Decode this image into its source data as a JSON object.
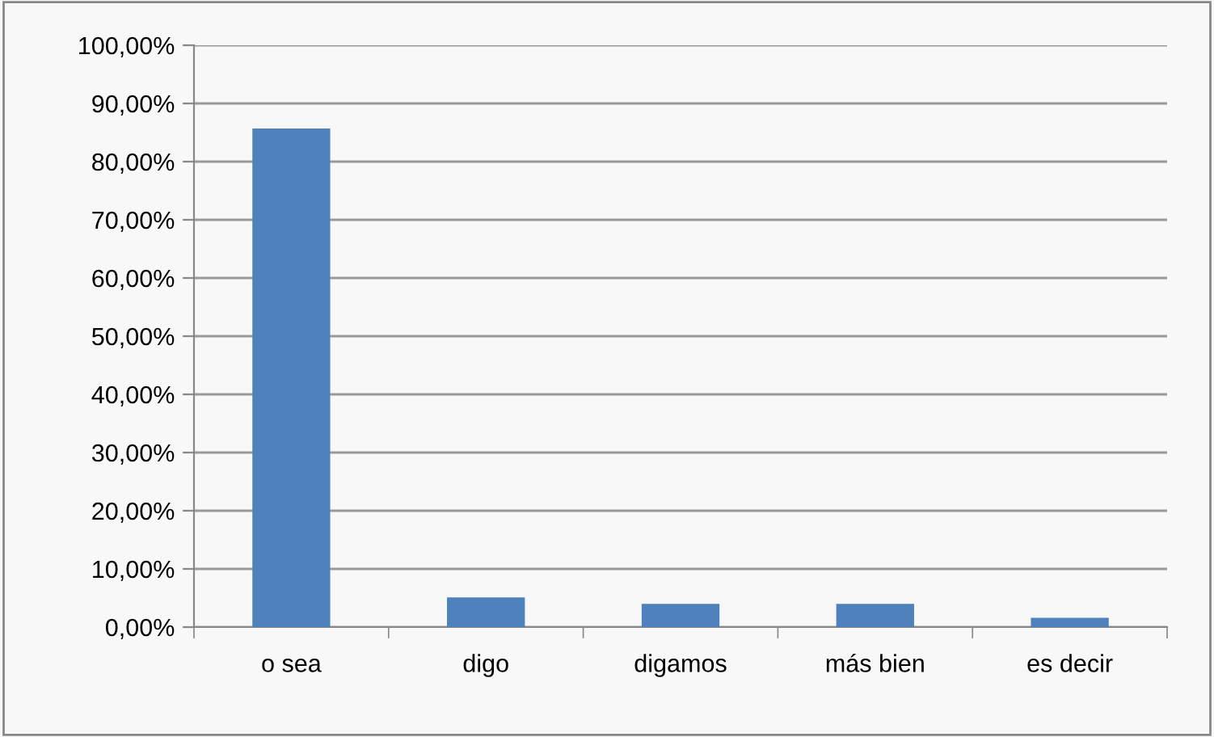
{
  "chart_data": {
    "type": "bar",
    "categories": [
      "o sea",
      "digo",
      "digamos",
      "más bien",
      "es decir"
    ],
    "values": [
      85.7,
      5.1,
      4.0,
      4.0,
      1.6
    ],
    "color": "#4f81bd",
    "ylim": [
      0,
      100
    ],
    "yticks": [
      {
        "value": 0,
        "label": "0,00%"
      },
      {
        "value": 10,
        "label": "10,00%"
      },
      {
        "value": 20,
        "label": "20,00%"
      },
      {
        "value": 30,
        "label": "30,00%"
      },
      {
        "value": 40,
        "label": "40,00%"
      },
      {
        "value": 50,
        "label": "50,00%"
      },
      {
        "value": 60,
        "label": "60,00%"
      },
      {
        "value": 70,
        "label": "70,00%"
      },
      {
        "value": 80,
        "label": "80,00%"
      },
      {
        "value": 90,
        "label": "90,00%"
      },
      {
        "value": 100,
        "label": "100,00%"
      }
    ],
    "grid": "y"
  }
}
